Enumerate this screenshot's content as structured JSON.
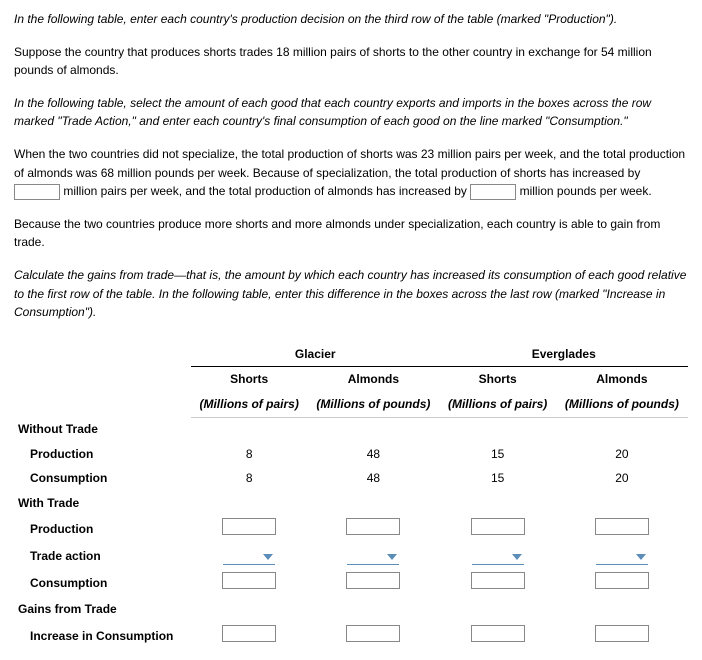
{
  "paragraphs": {
    "p1": "In the following table, enter each country's production decision on the third row of the table (marked \"Production\").",
    "p2": "Suppose the country that produces shorts trades 18 million pairs of shorts to the other country in exchange for 54 million pounds of almonds.",
    "p3": "In the following table, select the amount of each good that each country exports and imports in the boxes across the row marked \"Trade Action,\" and enter each country's final consumption of each good on the line marked \"Consumption.\"",
    "p4_a": "When the two countries did not specialize, the total production of shorts was 23 million pairs per week, and the total production of almonds was 68 million pounds per week. Because of specialization, the total production of shorts has increased by ",
    "p4_b": " million pairs per week, and the total production of almonds has increased by ",
    "p4_c": " million pounds per week.",
    "p5": "Because the two countries produce more shorts and more almonds under specialization, each country is able to gain from trade.",
    "p6": "Calculate the gains from trade—that is, the amount by which each country has increased its consumption of each good relative to the first row of the table. In the following table, enter this difference in the boxes across the last row (marked \"Increase in Consumption\")."
  },
  "blanks": {
    "shorts_increase": "",
    "almonds_increase": ""
  },
  "table": {
    "countries": {
      "a": "Glacier",
      "b": "Everglades"
    },
    "subheads": {
      "good1": "Shorts",
      "good2": "Almonds"
    },
    "units": {
      "good1": "(Millions of pairs)",
      "good2": "(Millions of pounds)"
    },
    "rows": {
      "without_trade": "Without Trade",
      "production": "Production",
      "consumption": "Consumption",
      "with_trade": "With Trade",
      "trade_action": "Trade action",
      "gains_from_trade": "Gains from Trade",
      "increase_in_consumption": "Increase in Consumption"
    },
    "values": {
      "without_trade": {
        "production": {
          "a_g1": "8",
          "a_g2": "48",
          "b_g1": "15",
          "b_g2": "20"
        },
        "consumption": {
          "a_g1": "8",
          "a_g2": "48",
          "b_g1": "15",
          "b_g2": "20"
        }
      }
    }
  },
  "style": {
    "input_border": "#888888",
    "caret_color": "#5b8db8"
  }
}
